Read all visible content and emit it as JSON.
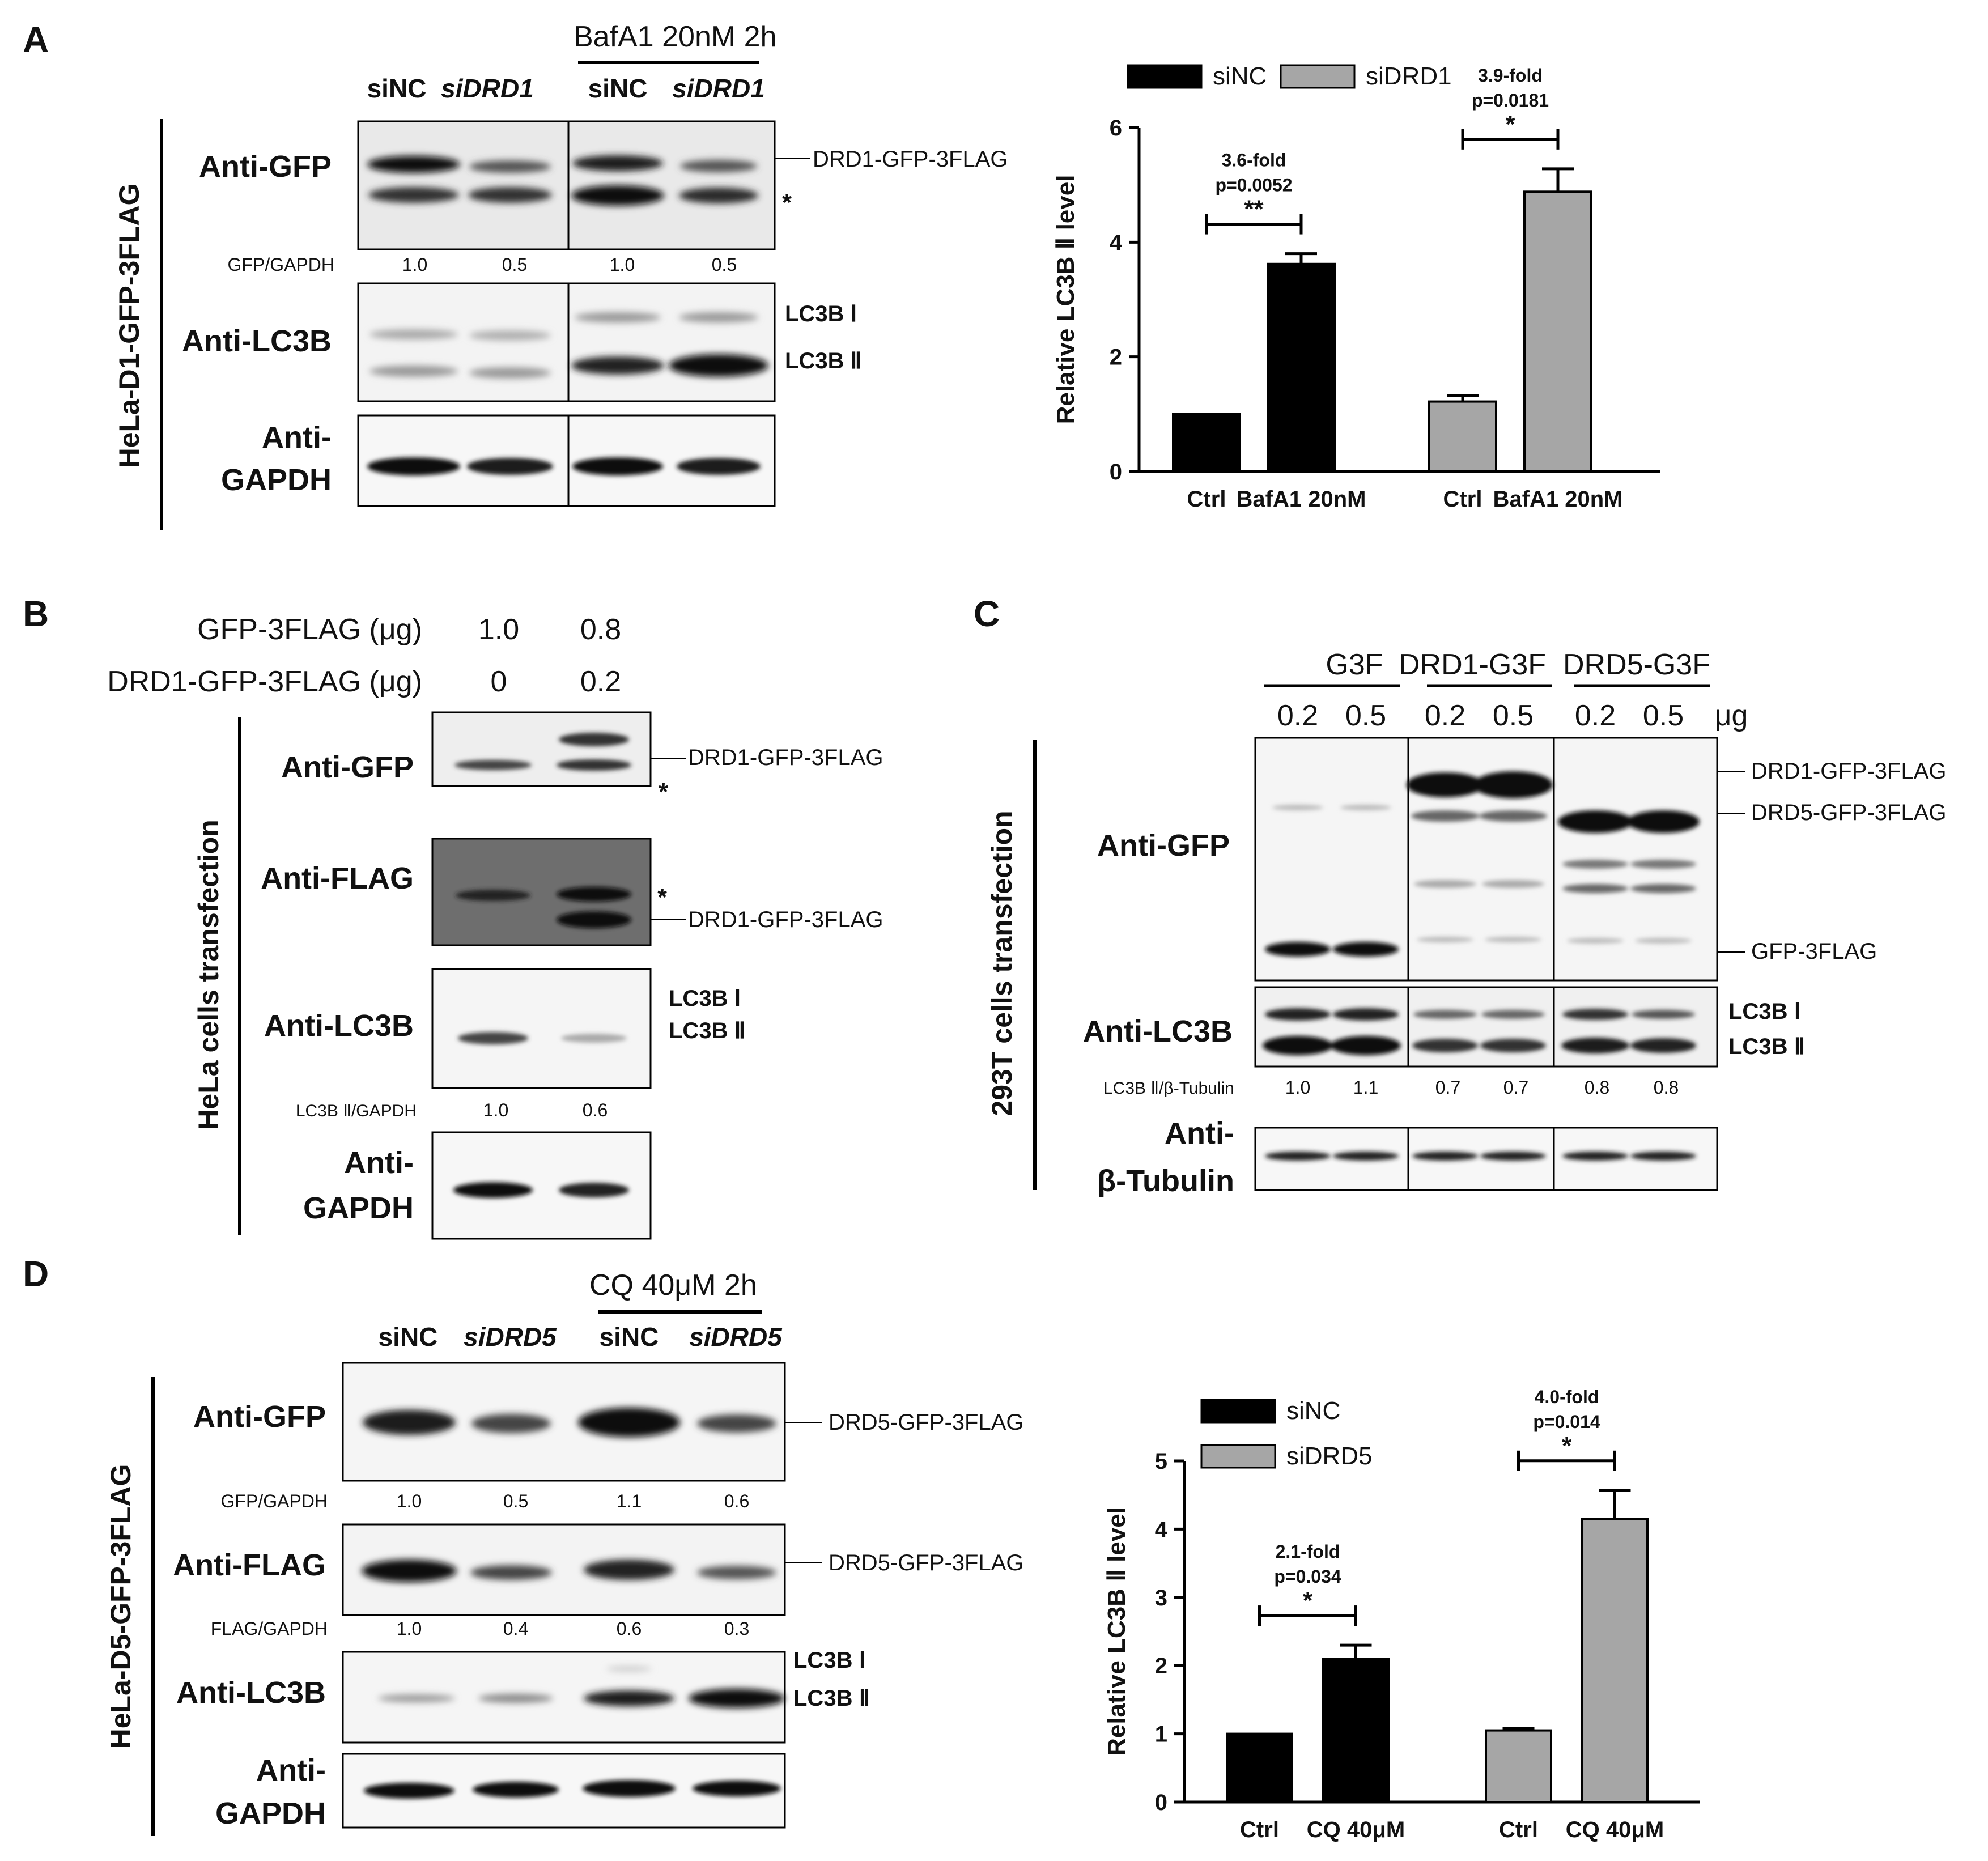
{
  "panels": [
    "A",
    "B",
    "C",
    "D"
  ],
  "panelA": {
    "treatment": "BafA1 20nM  2h",
    "lanes": [
      "siNC",
      "siDRD1",
      "siNC",
      "siDRD1"
    ],
    "side_label": "HeLa-D1-GFP-3FLAG",
    "antibodies": [
      "Anti-GFP",
      "Anti-LC3B",
      "Anti-",
      "GAPDH"
    ],
    "band_labels": [
      "DRD1-GFP-3FLAG",
      "LC3B Ⅰ",
      "LC3B Ⅱ"
    ],
    "star": "*",
    "quant_label": "GFP/GAPDH",
    "quant_values": [
      "1.0",
      "0.5",
      "1.0",
      "0.5"
    ]
  },
  "panelB": {
    "row1_label": "GFP-3FLAG (μg)",
    "row1_values": [
      "1.0",
      "0.8"
    ],
    "row2_label": "DRD1-GFP-3FLAG (μg)",
    "row2_values": [
      "0",
      "0.2"
    ],
    "side_label": "HeLa cells  transfection",
    "antibodies": [
      "Anti-GFP",
      "Anti-FLAG",
      "Anti-LC3B",
      "Anti-",
      "GAPDH"
    ],
    "band_labels": [
      "DRD1-GFP-3FLAG",
      "DRD1-GFP-3FLAG",
      "LC3B Ⅰ",
      "LC3B Ⅱ"
    ],
    "star": "*",
    "quant_label": "LC3B Ⅱ/GAPDH",
    "quant_values": [
      "1.0",
      "0.6"
    ]
  },
  "panelC": {
    "groups": [
      "G3F",
      "DRD1-G3F",
      "DRD5-G3F"
    ],
    "doses": [
      "0.2",
      "0.5",
      "0.2",
      "0.5",
      "0.2",
      "0.5"
    ],
    "unit": "μg",
    "side_label": "293T cells  transfection",
    "antibodies": [
      "Anti-GFP",
      "Anti-LC3B",
      "Anti-",
      "β-Tubulin"
    ],
    "band_labels": [
      "DRD1-GFP-3FLAG",
      "DRD5-GFP-3FLAG",
      "GFP-3FLAG",
      "LC3B Ⅰ",
      "LC3B Ⅱ"
    ],
    "quant_label": "LC3B Ⅱ/β-Tubulin",
    "quant_values": [
      "1.0",
      "1.1",
      "0.7",
      "0.7",
      "0.8",
      "0.8"
    ]
  },
  "panelD": {
    "treatment": "CQ 40μM  2h",
    "lanes": [
      "siNC",
      "siDRD5",
      "siNC",
      "siDRD5"
    ],
    "side_label": "HeLa-D5-GFP-3FLAG",
    "antibodies": [
      "Anti-GFP",
      "Anti-FLAG",
      "Anti-LC3B",
      "Anti-",
      "GAPDH"
    ],
    "band_labels": [
      "DRD5-GFP-3FLAG",
      "DRD5-GFP-3FLAG",
      "LC3B Ⅰ",
      "LC3B Ⅱ"
    ],
    "quant1_label": "GFP/GAPDH",
    "quant1_values": [
      "1.0",
      "0.5",
      "1.1",
      "0.6"
    ],
    "quant2_label": "FLAG/GAPDH",
    "quant2_values": [
      "1.0",
      "0.4",
      "0.6",
      "0.3"
    ]
  },
  "colors": {
    "siNC": "#000000",
    "siDRD": "#a6a6a6"
  },
  "chart_data": [
    {
      "type": "bar",
      "panel": "A",
      "categories": [
        "Ctrl",
        "BafA1 20nM",
        "Ctrl",
        "BafA1 20nM"
      ],
      "groups": [
        "siNC",
        "siNC",
        "siDRD1",
        "siDRD1"
      ],
      "values": [
        1.0,
        3.62,
        1.22,
        4.88
      ],
      "errors": [
        0.0,
        0.18,
        0.1,
        0.4
      ],
      "legend": [
        "siNC",
        "siDRD1"
      ],
      "ylabel": "Relative LC3B Ⅱ  level",
      "ylim": [
        0,
        6
      ],
      "yticks": [
        "0",
        "2",
        "4",
        "6"
      ],
      "annotations": [
        {
          "fold": "3.6-fold",
          "p": "p=0.0052",
          "sig": "**"
        },
        {
          "fold": "3.9-fold",
          "p": "p=0.0181",
          "sig": "*"
        }
      ]
    },
    {
      "type": "bar",
      "panel": "D",
      "categories": [
        "Ctrl",
        "CQ 40μM",
        "Ctrl",
        "CQ 40μM"
      ],
      "groups": [
        "siNC",
        "siNC",
        "siDRD5",
        "siDRD5"
      ],
      "values": [
        1.0,
        2.1,
        1.05,
        4.15
      ],
      "errors": [
        0.0,
        0.2,
        0.03,
        0.42
      ],
      "legend": [
        "siNC",
        "siDRD5"
      ],
      "ylabel": "Relative LC3B Ⅱ  level",
      "ylim": [
        0,
        5
      ],
      "yticks": [
        "0",
        "1",
        "2",
        "3",
        "4",
        "5"
      ],
      "annotations": [
        {
          "fold": "2.1-fold",
          "p": "p=0.034",
          "sig": "*"
        },
        {
          "fold": "4.0-fold",
          "p": "p=0.014",
          "sig": "*"
        }
      ]
    }
  ]
}
